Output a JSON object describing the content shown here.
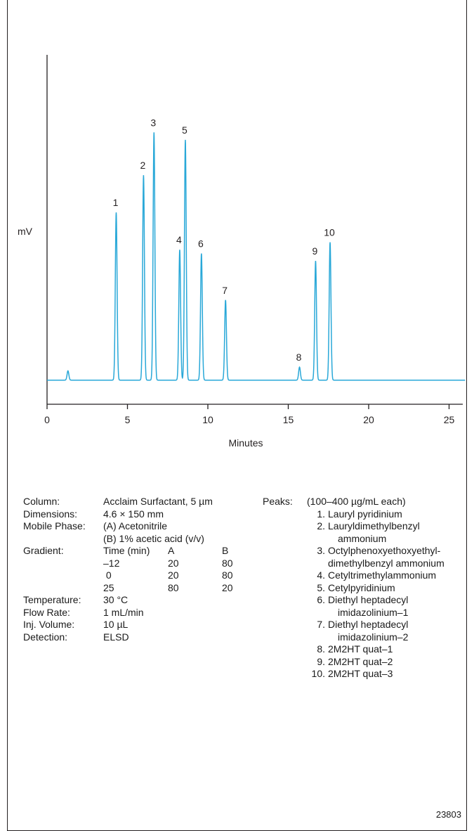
{
  "chart_data": {
    "type": "line",
    "ylabel": "mV",
    "xlabel": "Minutes",
    "xlim": [
      0,
      26
    ],
    "xticks": [
      0,
      5,
      10,
      15,
      20,
      25
    ],
    "line_color": "#29a8d8",
    "baseline": 0.02,
    "peaks": [
      {
        "label": "",
        "x": 1.3,
        "y": 0.07
      },
      {
        "label": "1",
        "x": 4.3,
        "y": 0.92
      },
      {
        "label": "2",
        "x": 6.0,
        "y": 1.12
      },
      {
        "label": "3",
        "x": 6.65,
        "y": 1.35
      },
      {
        "label": "4",
        "x": 8.25,
        "y": 0.72
      },
      {
        "label": "5",
        "x": 8.6,
        "y": 1.31
      },
      {
        "label": "6",
        "x": 9.6,
        "y": 0.7
      },
      {
        "label": "7",
        "x": 11.1,
        "y": 0.45
      },
      {
        "label": "8",
        "x": 15.7,
        "y": 0.09
      },
      {
        "label": "9",
        "x": 16.7,
        "y": 0.66
      },
      {
        "label": "10",
        "x": 17.6,
        "y": 0.76
      }
    ]
  },
  "conditions": [
    {
      "label": "Column:",
      "value": "Acclaim Surfactant, 5 µm"
    },
    {
      "label": "Dimensions:",
      "value": "4.6 × 150 mm"
    },
    {
      "label": "Mobile Phase:",
      "value": "(A) Acetonitrile"
    },
    {
      "label": "",
      "value": "(B) 1% acetic acid (v/v)"
    }
  ],
  "gradient": {
    "label": "Gradient:",
    "header": [
      "Time (min)",
      "A",
      "B"
    ],
    "rows": [
      [
        "–12",
        "20",
        "80"
      ],
      [
        " 0",
        "20",
        "80"
      ],
      [
        "25",
        "80",
        "20"
      ]
    ]
  },
  "conditions2": [
    {
      "label": "Temperature:",
      "value": "30 °C"
    },
    {
      "label": "Flow Rate:",
      "value": "1 mL/min"
    },
    {
      "label": "Inj. Volume:",
      "value": "10 µL"
    },
    {
      "label": "Detection:",
      "value": "ELSD"
    }
  ],
  "peaks_legend": {
    "label": "Peaks:",
    "note": "(100–400 µg/mL each)",
    "items": [
      {
        "num": "1.",
        "lines": [
          "Lauryl pyridinium"
        ]
      },
      {
        "num": "2.",
        "lines": [
          "Lauryldimethylbenzyl",
          "ammonium"
        ]
      },
      {
        "num": "3.",
        "lines": [
          "Octylphenoxyethoxyethyl-",
          "dimethylbenzyl ammonium"
        ]
      },
      {
        "num": "4.",
        "lines": [
          "Cetyltrimethylammonium"
        ]
      },
      {
        "num": "5.",
        "lines": [
          "Cetylpyridinium"
        ]
      },
      {
        "num": "6.",
        "lines": [
          "Diethyl heptadecyl",
          "imidazolinium–1"
        ]
      },
      {
        "num": "7.",
        "lines": [
          "Diethyl heptadecyl",
          "imidazolinium–2"
        ]
      },
      {
        "num": "8.",
        "lines": [
          "2M2HT quat–1"
        ]
      },
      {
        "num": "9.",
        "lines": [
          "2M2HT quat–2"
        ]
      },
      {
        "num": "10.",
        "lines": [
          "2M2HT quat–3"
        ]
      }
    ]
  },
  "figure_number": "23803"
}
